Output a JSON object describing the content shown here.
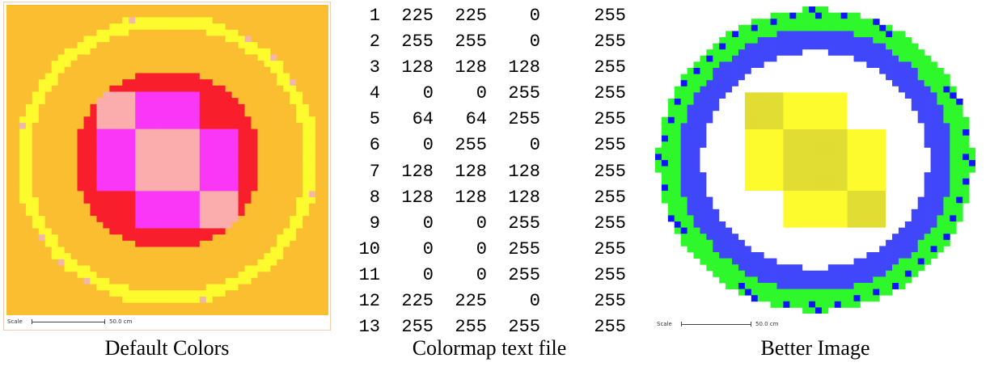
{
  "panels": {
    "left": {
      "caption": "Default Colors",
      "scale_label": "Scale",
      "scale_value": "50.0 cm",
      "colors": {
        "background": "#fbbe30",
        "ring": "#fdfb2d",
        "ring_edge": "#f3b7a8",
        "core_edge": "#f81e2c",
        "core": "#fa37f6",
        "center": "#fbacac"
      }
    },
    "middle": {
      "caption": "Colormap text file",
      "rows": [
        [
          "1",
          "225",
          "225",
          "0",
          "255"
        ],
        [
          "2",
          "255",
          "255",
          "0",
          "255"
        ],
        [
          "3",
          "128",
          "128",
          "128",
          "255"
        ],
        [
          "4",
          "0",
          "0",
          "255",
          "255"
        ],
        [
          "5",
          "64",
          "64",
          "255",
          "255"
        ],
        [
          "6",
          "0",
          "255",
          "0",
          "255"
        ],
        [
          "7",
          "128",
          "128",
          "128",
          "255"
        ],
        [
          "8",
          "128",
          "128",
          "128",
          "255"
        ],
        [
          "9",
          "0",
          "0",
          "255",
          "255"
        ],
        [
          "10",
          "0",
          "0",
          "255",
          "255"
        ],
        [
          "11",
          "0",
          "0",
          "255",
          "255"
        ],
        [
          "12",
          "225",
          "225",
          "0",
          "255"
        ],
        [
          "13",
          "255",
          "255",
          "255",
          "255"
        ]
      ]
    },
    "right": {
      "caption": "Better Image",
      "scale_label": "Scale",
      "scale_value": "50.0 cm",
      "colors": {
        "background": "#ffffff",
        "outer_ring": "#2ef72b",
        "ring_edge": "#0f14fb",
        "blue_ring": "#4047fa",
        "white_gap": "#ffffff",
        "core": "#fdfb2d",
        "center": "#e1dd33"
      }
    }
  }
}
